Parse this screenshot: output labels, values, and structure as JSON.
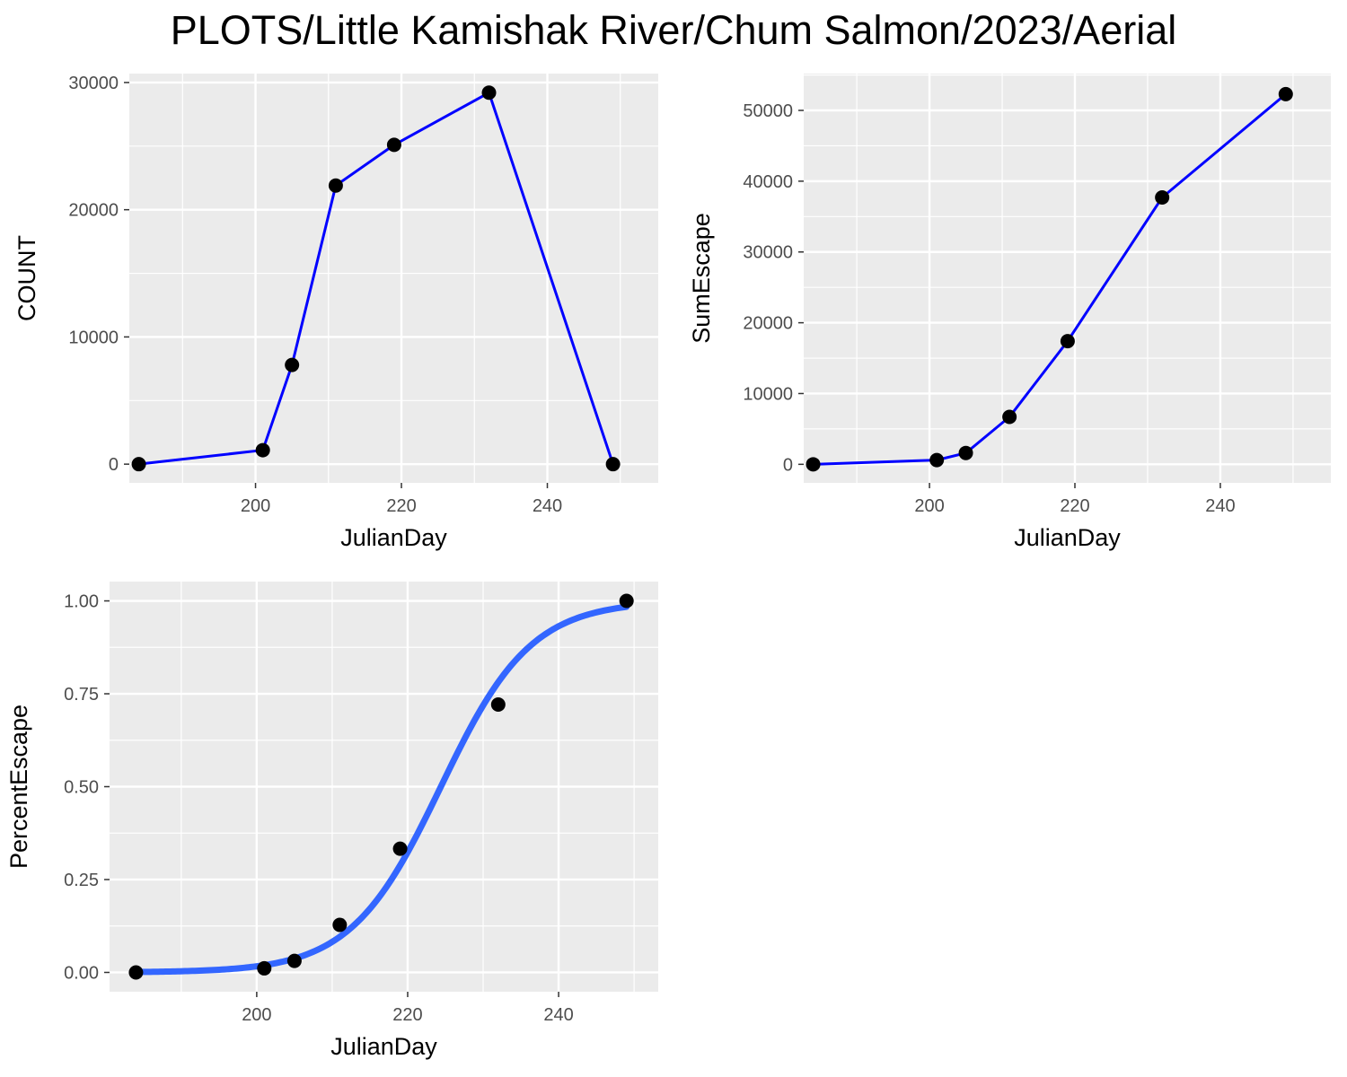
{
  "title": "PLOTS/Little Kamishak River/Chum Salmon/2023/Aerial",
  "colors": {
    "panel_bg": "#EBEBEB",
    "grid": "#FFFFFF",
    "tick_text": "#4D4D4D",
    "point": "#000000",
    "line": "#0000FF",
    "smooth": "#3366FF"
  },
  "chart_data": [
    {
      "type": "line",
      "xlabel": "JulianDay",
      "ylabel": "COUNT",
      "x_ticks": [
        200,
        220,
        240
      ],
      "y_ticks": [
        0,
        10000,
        20000,
        30000
      ],
      "xlim": [
        182.7,
        255.2
      ],
      "ylim": [
        -1470,
        30700
      ],
      "grid": true,
      "series": [
        {
          "x": [
            184,
            201,
            205,
            211,
            219,
            232,
            249
          ],
          "y": [
            0,
            1100,
            7800,
            21900,
            25100,
            29200,
            0
          ],
          "style": "line+points"
        }
      ]
    },
    {
      "type": "line",
      "xlabel": "JulianDay",
      "ylabel": "SumEscape",
      "x_ticks": [
        200,
        220,
        240
      ],
      "y_ticks": [
        0,
        10000,
        20000,
        30000,
        40000,
        50000
      ],
      "xlim": [
        182.7,
        255.2
      ],
      "ylim": [
        -2620,
        55200
      ],
      "grid": true,
      "series": [
        {
          "x": [
            184,
            201,
            205,
            211,
            219,
            232,
            249
          ],
          "y": [
            0,
            600,
            1600,
            6700,
            17400,
            37700,
            52300
          ],
          "style": "line+points"
        }
      ]
    },
    {
      "type": "scatter",
      "xlabel": "JulianDay",
      "ylabel": "PercentEscape",
      "x_ticks": [
        200,
        220,
        240
      ],
      "y_ticks": [
        0.0,
        0.25,
        0.5,
        0.75,
        1.0
      ],
      "y_tick_labels": [
        "0.00",
        "0.25",
        "0.50",
        "0.75",
        "1.00"
      ],
      "xlim": [
        180.5,
        253.2
      ],
      "ylim": [
        -0.052,
        1.052
      ],
      "grid": true,
      "series": [
        {
          "x": [
            184,
            201,
            205,
            211,
            219,
            232,
            249
          ],
          "y": [
            0.0,
            0.011,
            0.031,
            0.128,
            0.333,
            0.721,
            1.0
          ],
          "style": "points"
        }
      ],
      "fit_curve": {
        "type": "logistic",
        "midpoint": 224.4,
        "scale": 5.97,
        "x_range": [
          184,
          249
        ]
      }
    }
  ]
}
